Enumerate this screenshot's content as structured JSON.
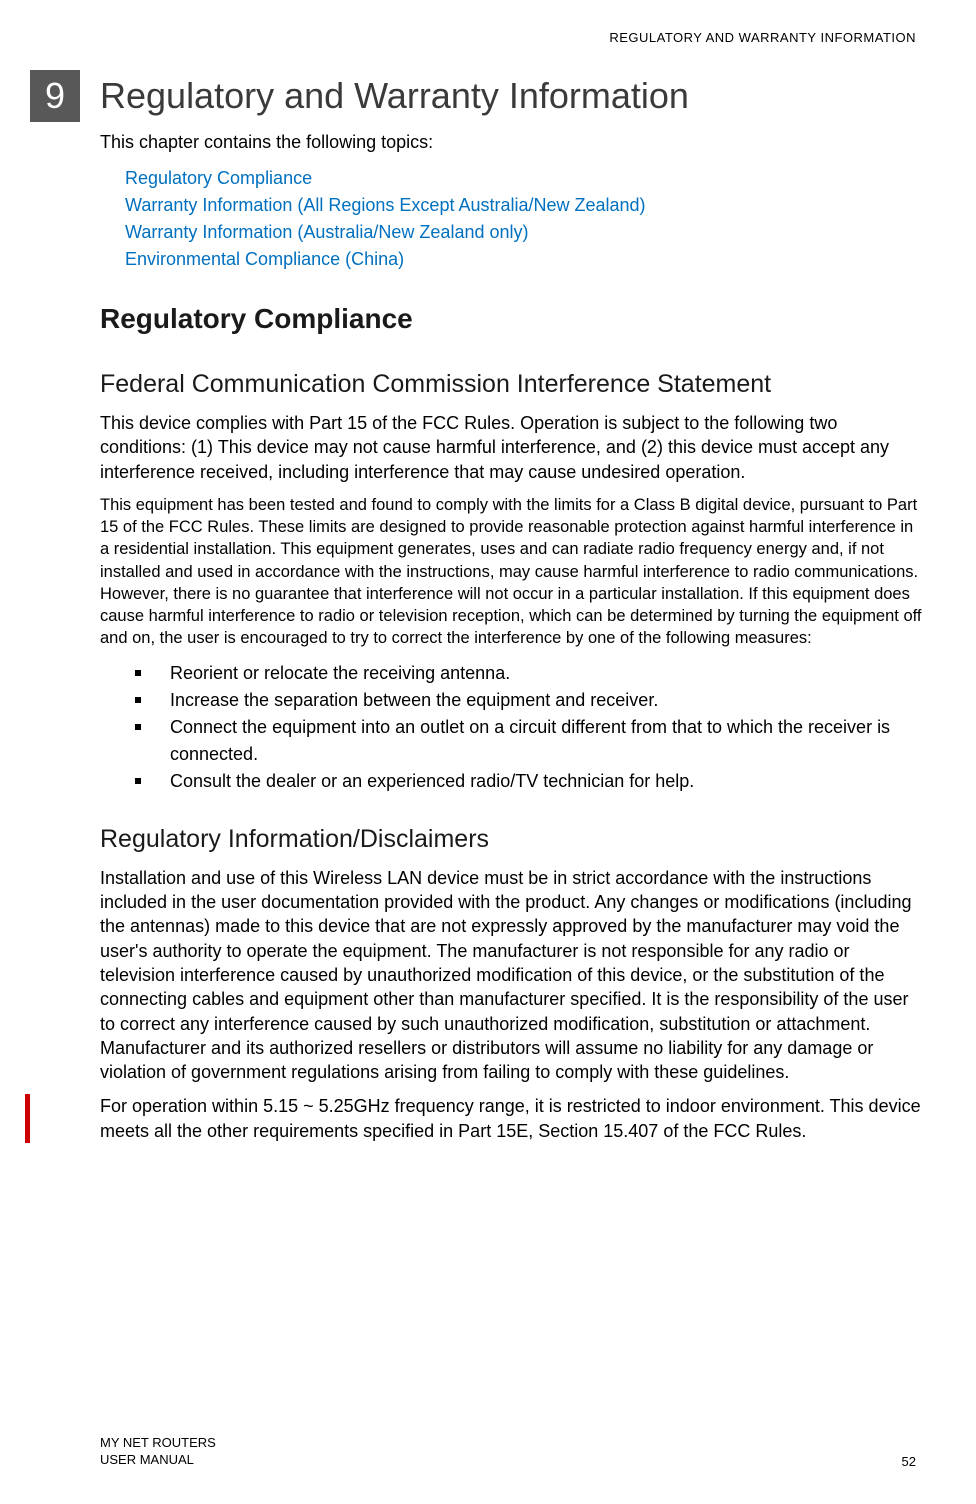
{
  "header": {
    "running_title": "REGULATORY AND WARRANTY INFORMATION"
  },
  "chapter": {
    "number": "9",
    "title": "Regulatory and Warranty Information"
  },
  "intro": {
    "text": "This chapter contains the following topics:",
    "links": [
      "Regulatory Compliance",
      "Warranty Information (All Regions Except Australia/New Zealand)",
      "Warranty Information (Australia/New Zealand only)",
      "Environmental Compliance (China)"
    ]
  },
  "section1": {
    "heading": "Regulatory Compliance"
  },
  "subsection1": {
    "heading": "Federal Communication Commission Interference Statement",
    "para1": "This device complies with Part 15 of the FCC Rules. Operation is subject to the following two conditions: (1) This device may not cause harmful interference, and (2) this device must accept any interference received, including interference that may cause undesired operation.",
    "para2": "This equipment has been tested and found to comply with the limits for a Class B digital device, pursuant to Part 15 of the FCC Rules. These limits are designed to provide reasonable protection against harmful interference in a residential installation. This equipment generates, uses and can radiate radio frequency energy and, if not installed and used in accordance with the instructions, may cause harmful interference to radio communications. However, there is no guarantee that interference will not occur in a particular installation. If this equipment does cause harmful interference to radio or television reception, which can be determined by turning the equipment off and on, the user is encouraged to try to correct the interference by one of the following measures:",
    "bullets": [
      "Reorient or relocate the receiving antenna.",
      "Increase the separation between the equipment and receiver.",
      "Connect the equipment into an outlet on a circuit different from that to which the receiver is connected.",
      "Consult the dealer or an experienced radio/TV technician for help."
    ]
  },
  "subsection2": {
    "heading": "Regulatory Information/Disclaimers",
    "para1": "Installation and use of this Wireless LAN device must be in strict accordance with the instructions included in the user documentation provided with the product. Any changes or modifications (including the antennas) made to this device that are not expressly approved by the manufacturer may void the user's authority to operate the equipment. The manufacturer is not responsible for any radio or television interference caused by unauthorized modification of this device, or the substitution of the connecting cables and equipment other than manufacturer specified. It is the responsibility of the user to correct any interference caused by such unauthorized modification, substitution or attachment. Manufacturer and its authorized resellers or distributors will assume no liability for any damage or violation of government regulations arising from failing to comply with these guidelines.",
    "para2": "For operation within 5.15 ~ 5.25GHz frequency range, it is restricted to indoor environment. This device meets all the other requirements specified in Part 15E, Section 15.407 of the FCC Rules."
  },
  "footer": {
    "line1": "MY NET ROUTERS",
    "line2": "USER MANUAL",
    "page": "52"
  },
  "colors": {
    "link": "#0070c0",
    "changebar": "#cc0000",
    "chapterbox": "#585858",
    "text": "#000000"
  }
}
